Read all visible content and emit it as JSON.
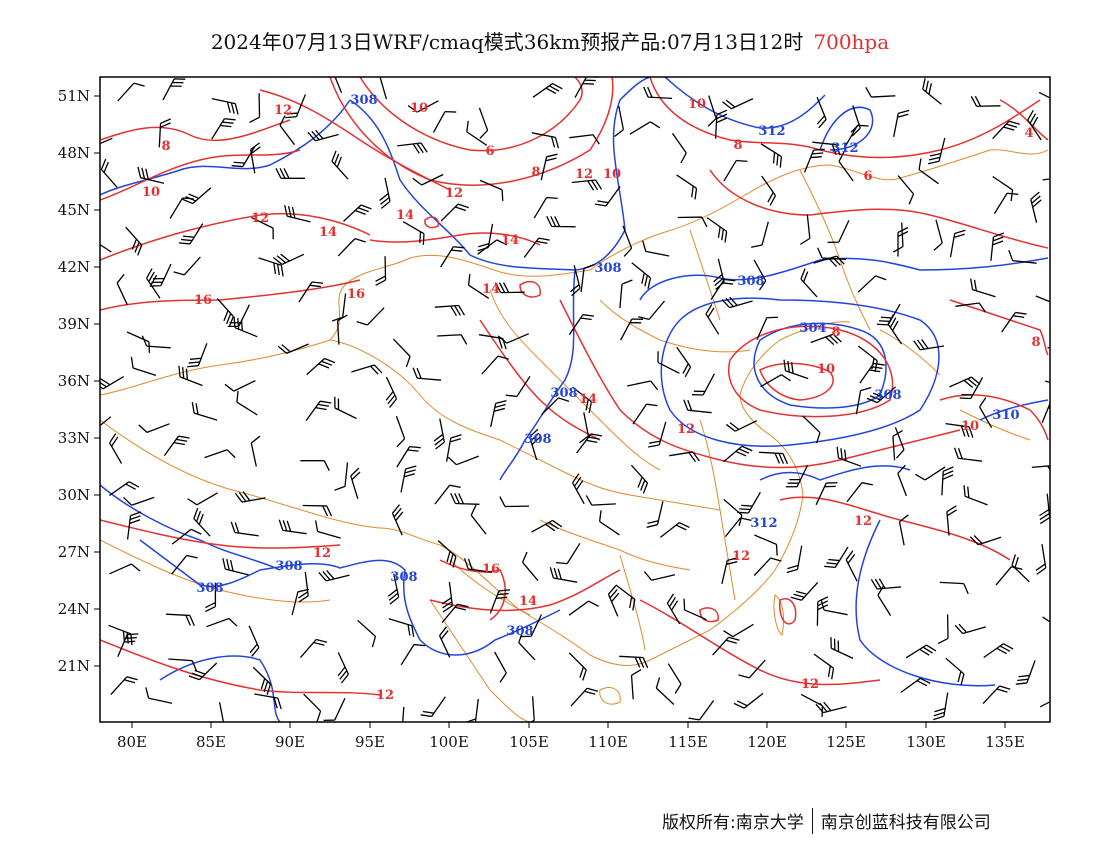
{
  "title": {
    "main": "2024年07月13日WRF/cmaq模式36km预报产品:07月13日12时",
    "level": "700hpa"
  },
  "axes": {
    "lat_labels": [
      "51N",
      "48N",
      "45N",
      "42N",
      "39N",
      "36N",
      "33N",
      "30N",
      "27N",
      "24N",
      "21N"
    ],
    "lon_labels": [
      "80E",
      "85E",
      "90E",
      "95E",
      "100E",
      "105E",
      "110E",
      "115E",
      "120E",
      "125E",
      "130E",
      "135E"
    ]
  },
  "colors": {
    "height_contour": "#2244dd",
    "temperature_contour": "#e53030",
    "boundary": "#e08a2c",
    "wind_barb": "#000000",
    "level_text": "#e53030"
  },
  "height_labels": [
    "308",
    "312",
    "312",
    "308",
    "308",
    "304",
    "308",
    "308",
    "308",
    "310",
    "312",
    "308",
    "308",
    "308"
  ],
  "temperature_labels": [
    "8",
    "10",
    "12",
    "10",
    "6",
    "8",
    "10",
    "12",
    "10",
    "8",
    "4",
    "12",
    "14",
    "12",
    "14",
    "14",
    "14",
    "16",
    "16",
    "6",
    "8",
    "10",
    "8",
    "14",
    "12",
    "12",
    "12",
    "10",
    "12",
    "16",
    "14",
    "12"
  ],
  "copyright": {
    "left": "版权所有:南京大学",
    "right": "南京创蓝科技有限公司"
  }
}
